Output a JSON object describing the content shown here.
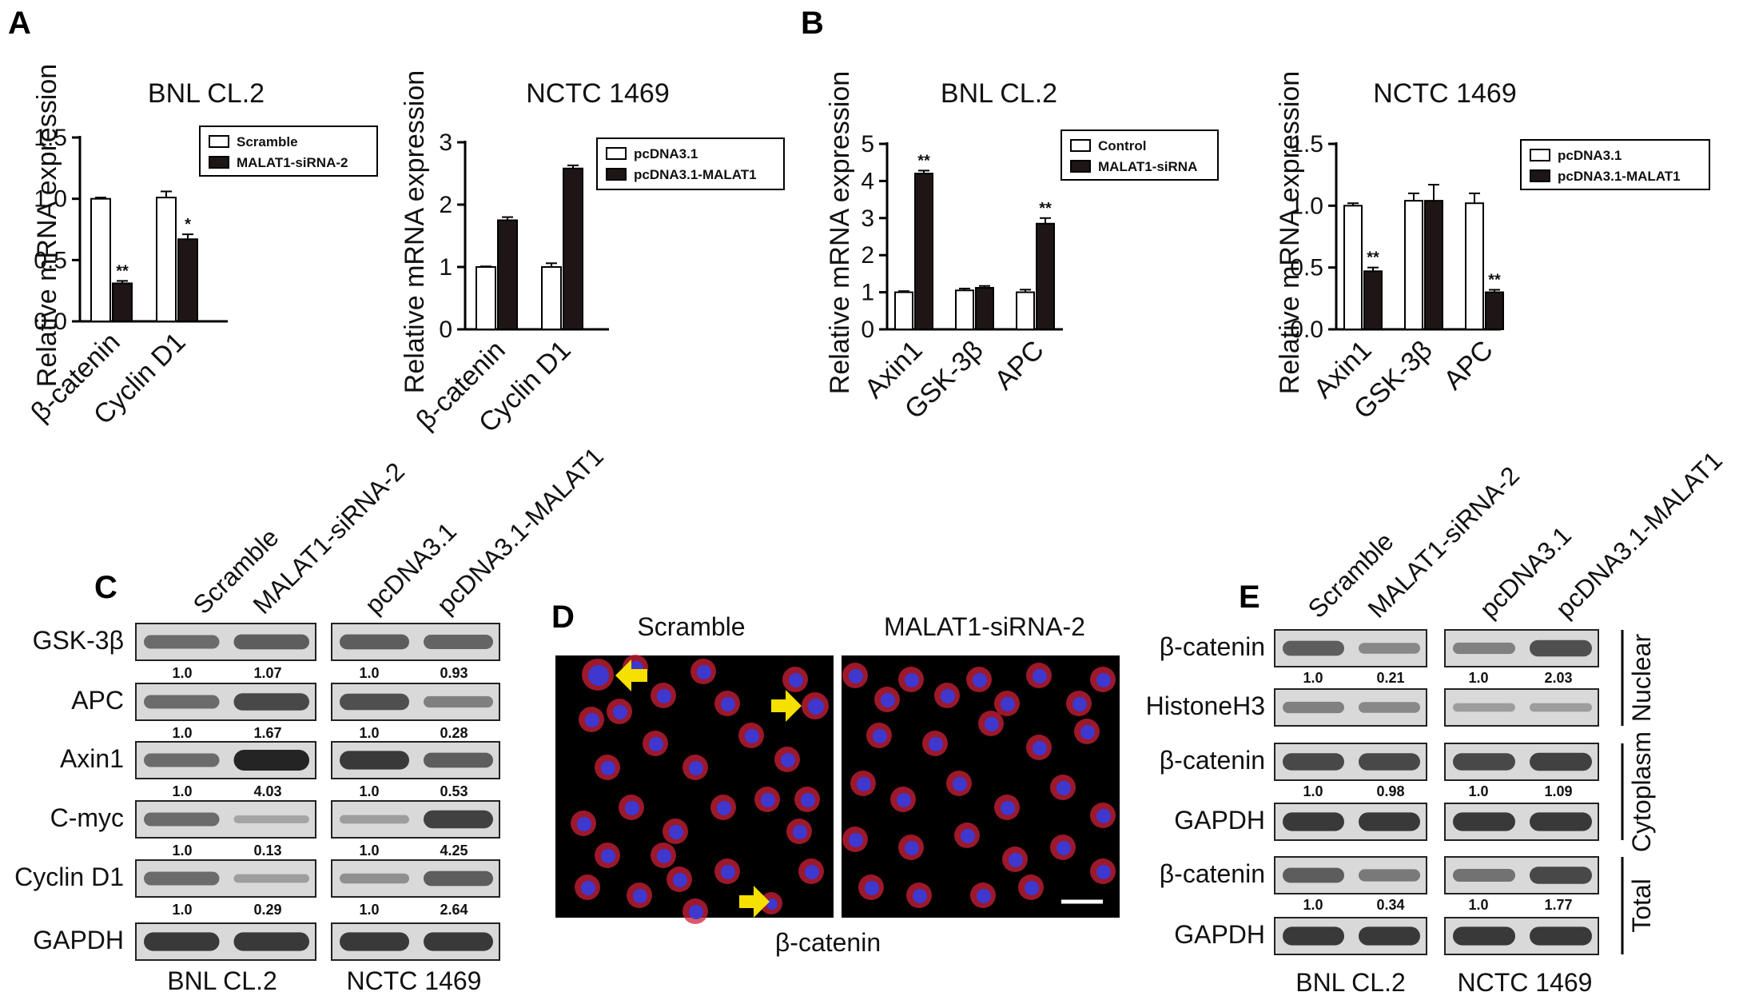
{
  "panel_labels": [
    "A",
    "B",
    "C",
    "D",
    "E"
  ],
  "colors": {
    "open_bar": "#ffffff",
    "filled_bar": "#1e1616",
    "blot_bg": "#d9d9d9",
    "band": "#1a1a1a",
    "fluor_bg": "#000000",
    "cell_red": "#d0203a",
    "nucleus_blue": "#3a3ad8",
    "arrow": "#f5e000"
  },
  "chart_data": [
    {
      "type": "bar",
      "panel": "A",
      "title": "BNL CL.2",
      "ylabel": "Relative mRNA expression",
      "ylim": [
        0,
        1.5
      ],
      "yticks": [
        "0.0",
        "0.5",
        "1.0",
        "1.5"
      ],
      "ytick_values": [
        0,
        0.5,
        1.0,
        1.5
      ],
      "categories": [
        "β-catenin",
        "Cyclin D1"
      ],
      "series": [
        {
          "name": "Scramble",
          "values": [
            1.0,
            1.01
          ],
          "errors": [
            0.01,
            0.05
          ]
        },
        {
          "name": "MALAT1-siRNA-2",
          "values": [
            0.31,
            0.67
          ],
          "errors": [
            0.02,
            0.04
          ]
        }
      ],
      "significance": [
        "**",
        "*"
      ]
    },
    {
      "type": "bar",
      "panel": "A",
      "title": "NCTC 1469",
      "ylabel": "Relative mRNA expression",
      "ylim": [
        0,
        3
      ],
      "yticks": [
        "0",
        "1",
        "2",
        "3"
      ],
      "ytick_values": [
        0,
        1,
        2,
        3
      ],
      "categories": [
        "β-catenin",
        "Cyclin D1"
      ],
      "series": [
        {
          "name": "pcDNA3.1",
          "values": [
            1.0,
            1.0
          ],
          "errors": [
            0.01,
            0.06
          ]
        },
        {
          "name": "pcDNA3.1-MALAT1",
          "values": [
            1.75,
            2.58
          ],
          "errors": [
            0.05,
            0.05
          ]
        }
      ],
      "significance": [
        "",
        ""
      ]
    },
    {
      "type": "bar",
      "panel": "B",
      "title": "BNL CL.2",
      "ylabel": "Relative mRNA expression",
      "ylim": [
        0,
        5
      ],
      "yticks": [
        "0",
        "1",
        "2",
        "3",
        "4",
        "5"
      ],
      "ytick_values": [
        0,
        1,
        2,
        3,
        4,
        5
      ],
      "categories": [
        "Axin1",
        "GSK-3β",
        "APC"
      ],
      "series": [
        {
          "name": "Control",
          "values": [
            1.0,
            1.05,
            1.0
          ],
          "errors": [
            0.03,
            0.05,
            0.07
          ]
        },
        {
          "name": "MALAT1-siRNA",
          "values": [
            4.2,
            1.12,
            2.85
          ],
          "errors": [
            0.08,
            0.05,
            0.15
          ]
        }
      ],
      "significance": [
        "**",
        "",
        "**"
      ]
    },
    {
      "type": "bar",
      "panel": "B",
      "title": "NCTC 1469",
      "ylabel": "Relative mRNA expression",
      "ylim": [
        0,
        1.5
      ],
      "yticks": [
        "0.0",
        "0.5",
        "1.0",
        "1.5"
      ],
      "ytick_values": [
        0,
        0.5,
        1.0,
        1.5
      ],
      "categories": [
        "Axin1",
        "GSK-3β",
        "APC"
      ],
      "series": [
        {
          "name": "pcDNA3.1",
          "values": [
            1.0,
            1.04,
            1.02
          ],
          "errors": [
            0.02,
            0.06,
            0.08
          ]
        },
        {
          "name": "pcDNA3.1-MALAT1",
          "values": [
            0.47,
            1.04,
            0.3
          ],
          "errors": [
            0.03,
            0.13,
            0.02
          ]
        }
      ],
      "significance": [
        "**",
        "",
        "**"
      ]
    }
  ],
  "panel_c": {
    "lanes": [
      "Scramble",
      "MALAT1-siRNA-2",
      "pcDNA3.1",
      "pcDNA3.1-MALAT1"
    ],
    "rows": [
      {
        "label": "GSK-3β",
        "quant_left": [
          "1.0",
          "1.07"
        ],
        "quant_right": [
          "1.0",
          "0.93"
        ]
      },
      {
        "label": "APC",
        "quant_left": [
          "1.0",
          "1.67"
        ],
        "quant_right": [
          "1.0",
          "0.28"
        ]
      },
      {
        "label": "Axin1",
        "quant_left": [
          "1.0",
          "4.03"
        ],
        "quant_right": [
          "1.0",
          "0.53"
        ]
      },
      {
        "label": "C-myc",
        "quant_left": [
          "1.0",
          "0.13"
        ],
        "quant_right": [
          "1.0",
          "4.25"
        ]
      },
      {
        "label": "Cyclin D1",
        "quant_left": [
          "1.0",
          "0.29"
        ],
        "quant_right": [
          "1.0",
          "2.64"
        ]
      },
      {
        "label": "GAPDH",
        "quant_left": [
          "",
          ""
        ],
        "quant_right": [
          "",
          ""
        ]
      }
    ],
    "cell_lines": [
      "BNL CL.2",
      "NCTC 1469"
    ]
  },
  "panel_d": {
    "left_label": "Scramble",
    "right_label": "MALAT1-siRNA-2",
    "caption": "β-catenin"
  },
  "panel_e": {
    "lanes": [
      "Scramble",
      "MALAT1-siRNA-2",
      "pcDNA3.1",
      "pcDNA3.1-MALAT1"
    ],
    "rows": [
      {
        "label": "β-catenin",
        "quant_left": [
          "1.0",
          "0.21"
        ],
        "quant_right": [
          "1.0",
          "2.03"
        ]
      },
      {
        "label": "HistoneH3",
        "quant_left": [
          "",
          ""
        ],
        "quant_right": [
          "",
          ""
        ]
      },
      {
        "label": "β-catenin",
        "quant_left": [
          "1.0",
          "0.98"
        ],
        "quant_right": [
          "1.0",
          "1.09"
        ]
      },
      {
        "label": "GAPDH",
        "quant_left": [
          "",
          ""
        ],
        "quant_right": [
          "",
          ""
        ]
      },
      {
        "label": "β-catenin",
        "quant_left": [
          "1.0",
          "0.34"
        ],
        "quant_right": [
          "1.0",
          "1.77"
        ]
      },
      {
        "label": "GAPDH",
        "quant_left": [
          "",
          ""
        ],
        "quant_right": [
          "",
          ""
        ]
      }
    ],
    "sections": [
      "Nuclear",
      "Cytoplasm",
      "Total"
    ],
    "cell_lines": [
      "BNL CL.2",
      "NCTC 1469"
    ]
  }
}
